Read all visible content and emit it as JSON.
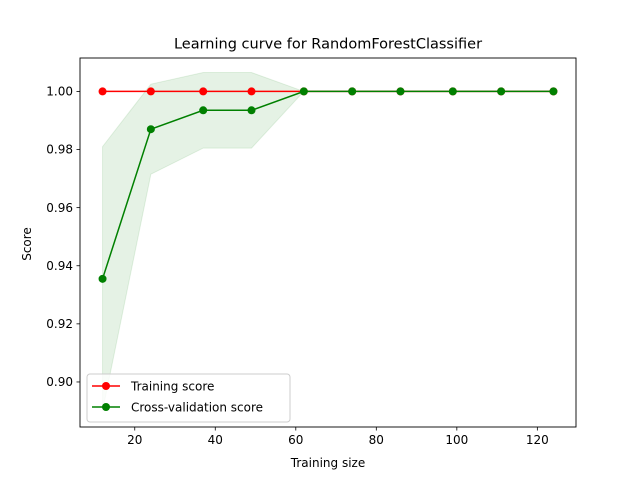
{
  "chart_data": {
    "type": "line",
    "title": "Learning curve for RandomForestClassifier",
    "xlabel": "Training size",
    "ylabel": "Score",
    "xlim": [
      6.4,
      129.6
    ],
    "ylim": [
      0.8845,
      1.0115
    ],
    "xticks": [
      20,
      40,
      60,
      80,
      100,
      120
    ],
    "yticks": [
      0.9,
      0.92,
      0.94,
      0.96,
      0.98,
      1.0
    ],
    "ytick_labels": [
      "0.90",
      "0.92",
      "0.94",
      "0.96",
      "0.98",
      "1.00"
    ],
    "legend_position": "lower-left",
    "grid": false,
    "x": [
      12,
      24,
      37,
      49,
      62,
      74,
      86,
      99,
      111,
      124
    ],
    "series": [
      {
        "name": "Training score",
        "color": "#ff0000",
        "values": [
          1.0,
          1.0,
          1.0,
          1.0,
          1.0,
          1.0,
          1.0,
          1.0,
          1.0,
          1.0
        ]
      },
      {
        "name": "Cross-validation score",
        "color": "#008000",
        "values": [
          0.9355,
          0.987,
          0.9935,
          0.9935,
          1.0,
          1.0,
          1.0,
          1.0,
          1.0,
          1.0
        ],
        "band_upper": [
          0.981,
          1.0025,
          1.0065,
          1.0065,
          1.0,
          1.0,
          1.0,
          1.0,
          1.0,
          1.0
        ],
        "band_lower": [
          0.89,
          0.9715,
          0.9805,
          0.9805,
          1.0,
          1.0,
          1.0,
          1.0,
          1.0,
          1.0
        ],
        "band_color": "#008000",
        "band_opacity": 0.1
      }
    ]
  }
}
